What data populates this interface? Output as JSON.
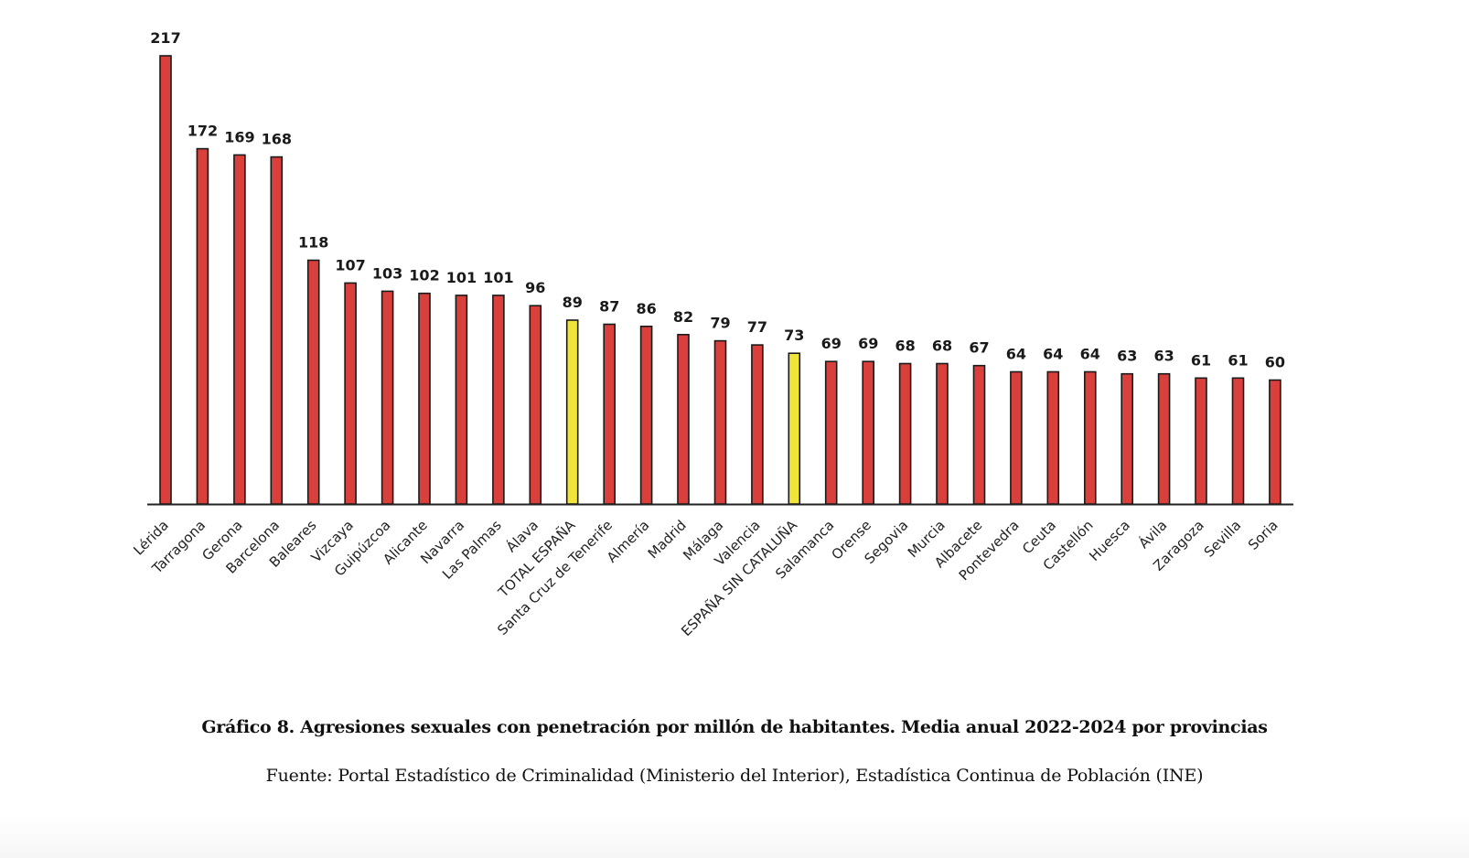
{
  "chart_data": {
    "type": "bar",
    "title": "Gráfico 8. Agresiones sexuales con penetración por millón de habitantes. Media anual 2022-2024 por provincias",
    "source": "Fuente: Portal Estadístico de Criminalidad (Ministerio del Interior), Estadística Continua de Población (INE)",
    "xlabel": "",
    "ylabel": "",
    "ylim": [
      0,
      217
    ],
    "grid": false,
    "legend": "none",
    "categories": [
      "Lérida",
      "Tarragona",
      "Gerona",
      "Barcelona",
      "Baleares",
      "Vizcaya",
      "Guipúzcoa",
      "Alicante",
      "Navarra",
      "Las Palmas",
      "Álava",
      "TOTAL ESPAÑA",
      "Santa Cruz de Tenerife",
      "Almería",
      "Madrid",
      "Málaga",
      "Valencia",
      "ESPAÑA SIN CATALUÑA",
      "Salamanca",
      "Orense",
      "Segovia",
      "Murcia",
      "Albacete",
      "Pontevedra",
      "Ceuta",
      "Castellón",
      "Huesca",
      "Ávila",
      "Zaragoza",
      "Sevilla",
      "Soria"
    ],
    "values": [
      217,
      172,
      169,
      168,
      118,
      107,
      103,
      102,
      101,
      101,
      96,
      89,
      87,
      86,
      82,
      79,
      77,
      73,
      69,
      69,
      68,
      68,
      67,
      64,
      64,
      64,
      63,
      63,
      61,
      61,
      60
    ],
    "highlighted": [
      "TOTAL ESPAÑA",
      "ESPAÑA SIN CATALUÑA"
    ],
    "colors": {
      "bar": "#d9403c",
      "highlight": "#f0e43a",
      "outline": "#1a1a1a",
      "axis": "#222222"
    }
  }
}
